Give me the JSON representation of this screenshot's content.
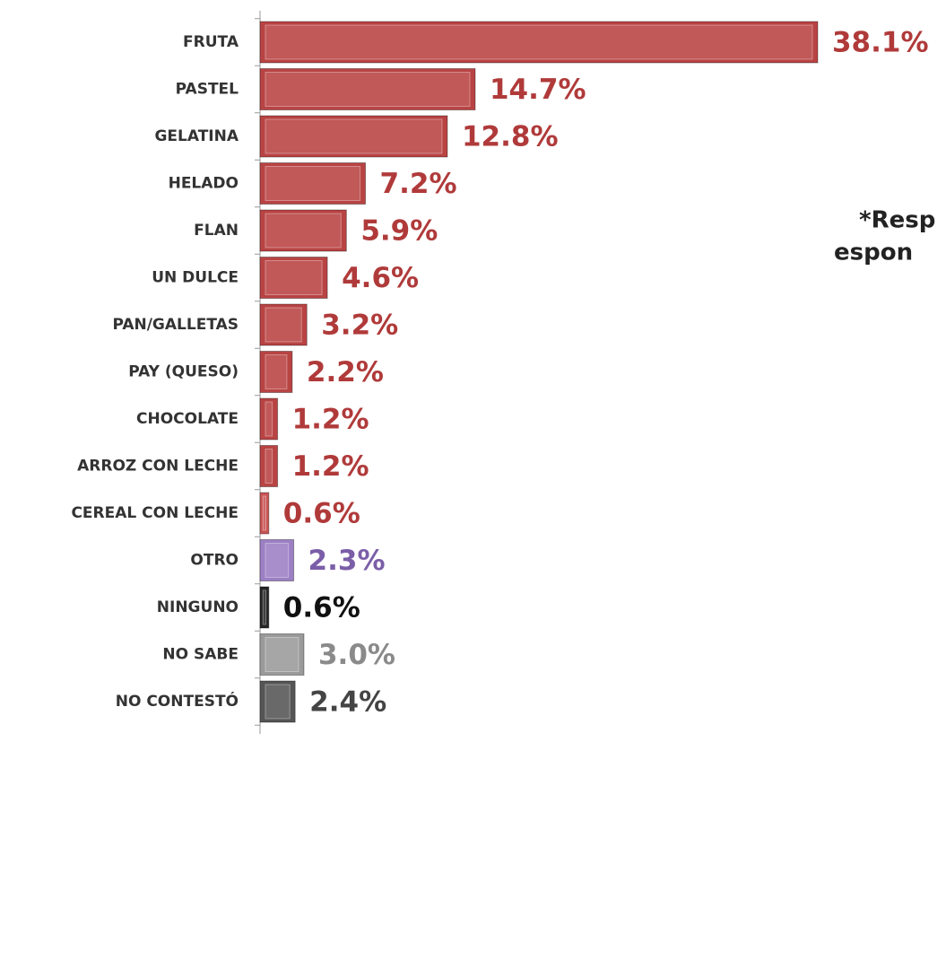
{
  "chart_data": {
    "type": "bar",
    "orientation": "horizontal",
    "categories": [
      "FRUTA",
      "PASTEL",
      "GELATINA",
      "HELADO",
      "FLAN",
      "UN DULCE",
      "PAN/GALLETAS",
      "PAY (QUESO)",
      "CHOCOLATE",
      "ARROZ CON LECHE",
      "CEREAL CON LECHE",
      "OTRO",
      "NINGUNO",
      "NO SABE",
      "NO CONTESTÓ"
    ],
    "values": [
      38.1,
      14.7,
      12.8,
      7.2,
      5.9,
      4.6,
      3.2,
      2.2,
      1.2,
      1.2,
      0.6,
      2.3,
      0.6,
      3.0,
      2.4
    ],
    "value_labels": [
      "38.1%",
      "14.7%",
      "12.8%",
      "7.2%",
      "5.9%",
      "4.6%",
      "3.2%",
      "2.2%",
      "1.2%",
      "1.2%",
      "0.6%",
      "2.3%",
      "0.6%",
      "3.0%",
      "2.4%"
    ],
    "colors": [
      "#b94343",
      "#b94343",
      "#b94343",
      "#b94343",
      "#b94343",
      "#b94343",
      "#b94343",
      "#b94343",
      "#b94343",
      "#b94343",
      "#c95454",
      "#9c7fc4",
      "#262626",
      "#9a9a9a",
      "#555555"
    ],
    "label_colors": [
      "#b03a3a",
      "#b03a3a",
      "#b03a3a",
      "#b03a3a",
      "#b03a3a",
      "#b03a3a",
      "#b03a3a",
      "#b03a3a",
      "#b03a3a",
      "#b03a3a",
      "#b03a3a",
      "#7b5ea8",
      "#111111",
      "#8a8a8a",
      "#444444"
    ],
    "xlim": [
      0,
      40
    ],
    "annotation": [
      "*Resp",
      "espon"
    ]
  }
}
